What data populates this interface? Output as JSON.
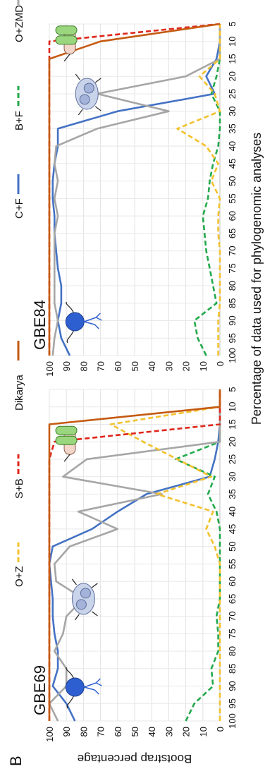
{
  "figure": {
    "panel_letter": "B",
    "ylabel": "Bootstrap percentage",
    "xlabel": "Percentage of data used for phylogenomic analyses",
    "legend_left": [
      {
        "label": "C+F",
        "color": "#4472C4",
        "dash": "solid"
      },
      {
        "label": "B+F",
        "color": "#22A94B",
        "dash": "dashed"
      },
      {
        "label": "O+ZMD",
        "color": "#A6A6A6",
        "dash": "solid"
      }
    ],
    "legend_right": [
      {
        "label": "O+Z",
        "color": "#F2C12E",
        "dash": "dashed"
      },
      {
        "label": "S+B",
        "color": "#E0261B",
        "dash": "dashed"
      },
      {
        "label": "Dikarya",
        "color": "#C55A11",
        "dash": "solid"
      }
    ],
    "icons": [
      "chytrid-fungus-icon",
      "amoeba-cluster-icon",
      "stramenopile-cell-icon"
    ]
  },
  "chart_data": [
    {
      "type": "line",
      "title": "GBE69",
      "x": [
        100,
        95,
        90,
        85,
        80,
        75,
        70,
        65,
        60,
        55,
        50,
        45,
        40,
        35,
        30,
        25,
        20,
        15,
        10,
        5
      ],
      "xlim": [
        100,
        5
      ],
      "ylim": [
        0,
        100
      ],
      "yticks": [
        0,
        10,
        20,
        30,
        40,
        50,
        60,
        70,
        80,
        90,
        100
      ],
      "series": [
        {
          "name": "C+F",
          "values": [
            85,
            90,
            98,
            95,
            95,
            97,
            98,
            98,
            99,
            100,
            98,
            75,
            60,
            43,
            6,
            3,
            1,
            0,
            0,
            0
          ]
        },
        {
          "name": "B+F",
          "values": [
            20,
            15,
            4,
            5,
            1,
            1,
            2,
            0,
            0,
            0,
            0,
            0,
            2,
            7,
            3,
            26,
            0,
            0,
            0,
            0
          ]
        },
        {
          "name": "O+ZMD",
          "values": [
            95,
            100,
            90,
            90,
            97,
            92,
            90,
            80,
            96,
            97,
            88,
            60,
            83,
            34,
            92,
            78,
            0,
            0,
            0,
            0
          ]
        },
        {
          "name": "O+Z",
          "values": [
            0,
            0,
            0,
            0,
            0,
            0,
            0,
            0,
            0,
            0,
            3,
            8,
            4,
            37,
            5,
            25,
            45,
            64,
            0,
            0
          ]
        },
        {
          "name": "S+B",
          "values": [
            100,
            100,
            100,
            100,
            100,
            100,
            100,
            100,
            100,
            100,
            100,
            100,
            100,
            100,
            100,
            100,
            97,
            0,
            0,
            0
          ]
        },
        {
          "name": "Dikarya",
          "values": [
            100,
            100,
            100,
            100,
            100,
            100,
            100,
            100,
            100,
            100,
            100,
            100,
            100,
            100,
            100,
            100,
            100,
            100,
            0,
            0
          ]
        }
      ]
    },
    {
      "type": "line",
      "title": "GBE84",
      "x": [
        100,
        95,
        90,
        85,
        80,
        75,
        70,
        65,
        60,
        55,
        50,
        45,
        40,
        35,
        30,
        25,
        20,
        15,
        10,
        5
      ],
      "xlim": [
        100,
        5
      ],
      "ylim": [
        0,
        100
      ],
      "yticks": [
        0,
        10,
        20,
        30,
        40,
        50,
        60,
        70,
        80,
        90,
        100
      ],
      "series": [
        {
          "name": "C+F",
          "values": [
            88,
            93,
            95,
            93,
            93,
            95,
            96,
            97,
            97,
            98,
            98,
            97,
            95,
            95,
            60,
            3,
            8,
            2,
            0,
            0
          ]
        },
        {
          "name": "B+F",
          "values": [
            8,
            13,
            15,
            2,
            4,
            6,
            8,
            9,
            10,
            7,
            6,
            4,
            1,
            0,
            0,
            5,
            2,
            0,
            0,
            0
          ]
        },
        {
          "name": "O+ZMD",
          "values": [
            98,
            97,
            95,
            97,
            97,
            97,
            97,
            97,
            95,
            97,
            95,
            97,
            96,
            72,
            30,
            72,
            20,
            0,
            0,
            0
          ]
        },
        {
          "name": "O+Z",
          "values": [
            1,
            1,
            1,
            0,
            0,
            0,
            0,
            1,
            1,
            0,
            5,
            1,
            8,
            25,
            0,
            3,
            12,
            0,
            0,
            0
          ]
        },
        {
          "name": "S+B",
          "values": [
            100,
            100,
            100,
            100,
            100,
            100,
            100,
            100,
            100,
            100,
            100,
            100,
            100,
            100,
            100,
            100,
            100,
            100,
            100,
            0
          ]
        },
        {
          "name": "Dikarya",
          "values": [
            100,
            100,
            100,
            100,
            100,
            100,
            100,
            100,
            100,
            100,
            100,
            100,
            100,
            100,
            100,
            100,
            100,
            100,
            70,
            0
          ]
        }
      ]
    }
  ]
}
